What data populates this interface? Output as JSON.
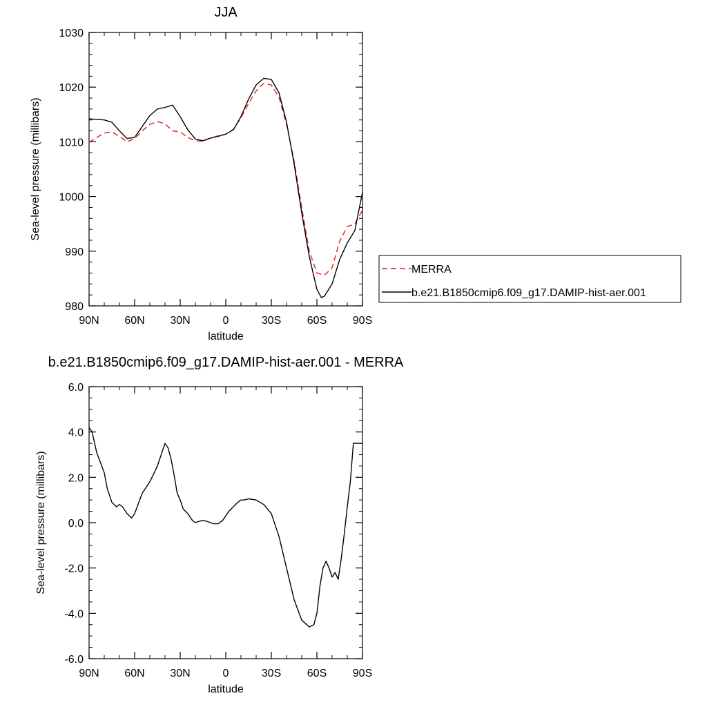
{
  "chart_data": [
    {
      "type": "line",
      "title": "JJA",
      "xlabel": "latitude",
      "ylabel": "Sea-level pressure (millibars)",
      "xlim": [
        90,
        -90
      ],
      "ylim": [
        980,
        1030
      ],
      "x_ticks": [
        90,
        60,
        30,
        0,
        -30,
        -60,
        -90
      ],
      "x_tick_labels": [
        "90N",
        "60N",
        "30N",
        "0",
        "30S",
        "60S",
        "90S"
      ],
      "y_ticks": [
        980,
        990,
        1000,
        1010,
        1020,
        1030
      ],
      "y_tick_labels": [
        "980",
        "990",
        "1000",
        "1010",
        "1020",
        "1030"
      ],
      "legend_position": "right",
      "series": [
        {
          "name": "MERRA",
          "color": "#e41a1c",
          "dash": "dashed",
          "x": [
            90,
            85,
            80,
            75,
            70,
            65,
            60,
            55,
            50,
            45,
            40,
            35,
            30,
            25,
            20,
            15,
            10,
            5,
            0,
            -5,
            -10,
            -15,
            -20,
            -25,
            -30,
            -35,
            -40,
            -45,
            -50,
            -55,
            -60,
            -63,
            -65,
            -70,
            -75,
            -80,
            -85,
            -90
          ],
          "values": [
            1009.9,
            1010.8,
            1011.6,
            1011.8,
            1011.0,
            1010.0,
            1010.6,
            1012.0,
            1013.2,
            1013.7,
            1013.3,
            1012.0,
            1011.8,
            1010.8,
            1010.2,
            1010.1,
            1010.7,
            1011.1,
            1011.4,
            1012.3,
            1014.4,
            1017.0,
            1019.3,
            1020.7,
            1020.4,
            1018.2,
            1013.2,
            1006.5,
            998.0,
            990.0,
            986.0,
            985.8,
            985.6,
            987.0,
            991.8,
            994.5,
            995.0,
            997.5
          ]
        },
        {
          "name": "b.e21.B1850cmip6.f09_g17.DAMIP-hist-aer.001",
          "color": "#000000",
          "dash": "solid",
          "x": [
            90,
            85,
            80,
            75,
            70,
            65,
            60,
            55,
            50,
            45,
            40,
            35,
            30,
            25,
            20,
            15,
            10,
            5,
            0,
            -5,
            -10,
            -15,
            -20,
            -25,
            -30,
            -35,
            -40,
            -45,
            -50,
            -55,
            -60,
            -63,
            -65,
            -70,
            -75,
            -80,
            -85,
            -90
          ],
          "values": [
            1014.2,
            1014.1,
            1014.0,
            1013.6,
            1012.0,
            1010.6,
            1010.8,
            1012.8,
            1014.8,
            1016.0,
            1016.3,
            1016.7,
            1014.6,
            1012.2,
            1010.5,
            1010.2,
            1010.7,
            1011.0,
            1011.4,
            1012.2,
            1014.6,
            1017.8,
            1020.4,
            1021.6,
            1021.4,
            1019.0,
            1013.6,
            1006.0,
            997.0,
            989.0,
            983.0,
            981.5,
            981.8,
            984.0,
            988.5,
            991.5,
            993.8,
            1000.8
          ]
        }
      ]
    },
    {
      "type": "line",
      "title": "b.e21.B1850cmip6.f09_g17.DAMIP-hist-aer.001 - MERRA",
      "xlabel": "latitude",
      "ylabel": "Sea-level pressure (millibars)",
      "xlim": [
        90,
        -90
      ],
      "ylim": [
        -6.0,
        6.0
      ],
      "x_ticks": [
        90,
        60,
        30,
        0,
        -30,
        -60,
        -90
      ],
      "x_tick_labels": [
        "90N",
        "60N",
        "30N",
        "0",
        "30S",
        "60S",
        "90S"
      ],
      "y_ticks": [
        -6.0,
        -4.0,
        -2.0,
        0.0,
        2.0,
        4.0,
        6.0
      ],
      "y_tick_labels": [
        "-6.0",
        "-4.0",
        "-2.0",
        "0.0",
        "2.0",
        "4.0",
        "6.0"
      ],
      "series": [
        {
          "color": "#000000",
          "dash": "solid",
          "x": [
            90,
            88,
            85,
            80,
            78,
            75,
            72,
            70,
            68,
            65,
            62,
            60,
            55,
            50,
            45,
            42,
            40,
            38,
            36,
            34,
            32,
            30,
            28,
            25,
            22,
            20,
            18,
            15,
            12,
            10,
            8,
            5,
            2,
            0,
            -2,
            -5,
            -8,
            -10,
            -12,
            -15,
            -20,
            -25,
            -30,
            -35,
            -40,
            -45,
            -50,
            -55,
            -58,
            -60,
            -62,
            -64,
            -66,
            -68,
            -70,
            -72,
            -74,
            -76,
            -78,
            -80,
            -82,
            -84,
            -86,
            -88,
            -90
          ],
          "values": [
            4.2,
            4.0,
            3.1,
            2.2,
            1.5,
            0.9,
            0.7,
            0.8,
            0.7,
            0.4,
            0.2,
            0.4,
            1.3,
            1.8,
            2.5,
            3.1,
            3.5,
            3.3,
            2.8,
            2.1,
            1.3,
            1.0,
            0.6,
            0.4,
            0.1,
            0.0,
            0.05,
            0.1,
            0.05,
            0.0,
            -0.05,
            -0.05,
            0.1,
            0.3,
            0.5,
            0.7,
            0.9,
            1.0,
            1.0,
            1.05,
            1.0,
            0.8,
            0.4,
            -0.6,
            -2.0,
            -3.4,
            -4.3,
            -4.6,
            -4.5,
            -4.0,
            -2.8,
            -2.0,
            -1.7,
            -2.0,
            -2.4,
            -2.2,
            -2.5,
            -1.6,
            -0.5,
            0.7,
            1.8,
            3.5,
            3.5,
            3.5,
            3.5
          ]
        }
      ]
    }
  ]
}
